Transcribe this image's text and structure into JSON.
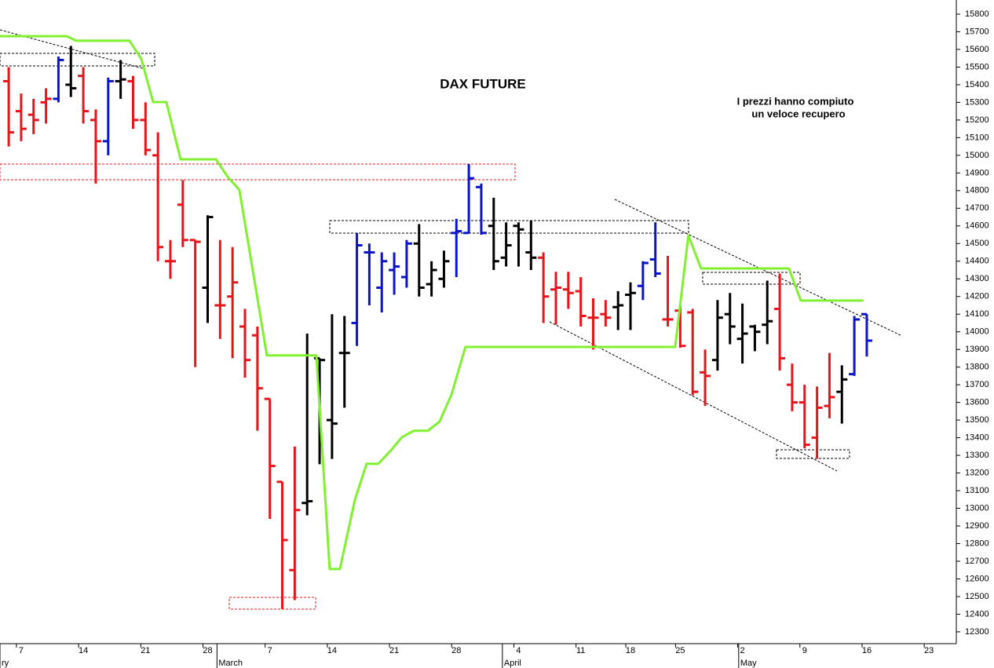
{
  "chart_data": {
    "type": "ohlc",
    "title": "DAX FUTURE",
    "annotations": [
      "I prezzi hanno compiuto",
      "un veloce recupero"
    ],
    "xlim": [
      -1.7,
      75.2
    ],
    "ylim": [
      12233,
      15880
    ],
    "yticks": [
      12300,
      12400,
      12500,
      12600,
      12700,
      12800,
      12900,
      13000,
      13100,
      13200,
      13300,
      13400,
      13500,
      13600,
      13700,
      13800,
      13900,
      14000,
      14100,
      14200,
      14300,
      14400,
      14500,
      14600,
      14700,
      14800,
      14900,
      15000,
      15100,
      15200,
      15300,
      15400,
      15500,
      15600,
      15700,
      15800
    ],
    "xticks": [
      {
        "value": 0,
        "label": "7"
      },
      {
        "value": 5,
        "label": "14"
      },
      {
        "value": 10,
        "label": "21"
      },
      {
        "value": 15,
        "label": "28"
      },
      {
        "value": 20,
        "label": "7"
      },
      {
        "value": 25,
        "label": "14"
      },
      {
        "value": 30,
        "label": "21"
      },
      {
        "value": 35,
        "label": "28"
      },
      {
        "value": 40,
        "label": "4"
      },
      {
        "value": 45,
        "label": "11"
      },
      {
        "value": 49,
        "label": "18"
      },
      {
        "value": 53,
        "label": "25"
      },
      {
        "value": 58,
        "label": "2"
      },
      {
        "value": 63,
        "label": "9"
      },
      {
        "value": 68,
        "label": "16"
      },
      {
        "value": 73,
        "label": "23"
      }
    ],
    "month_ticks": [
      {
        "value": -1.7,
        "label": "ry"
      },
      {
        "value": 15.75,
        "label": "March"
      },
      {
        "value": 38.7,
        "label": "April"
      },
      {
        "value": 57.7,
        "label": "May"
      }
    ],
    "palette": {
      "R": "#e8141b",
      "B": "#0a14c8",
      "K": "#000000"
    },
    "x": [
      -1,
      0,
      1,
      2,
      3,
      4,
      5,
      6,
      7,
      8,
      9,
      10,
      11,
      12,
      13,
      14,
      15,
      16,
      17,
      18,
      19,
      20,
      21,
      22,
      23,
      24,
      25,
      26,
      27,
      28,
      29,
      30,
      31,
      32,
      33,
      34,
      35,
      36,
      37,
      38,
      39,
      40,
      41,
      42,
      43,
      44,
      45,
      46,
      47,
      48,
      49,
      50,
      51,
      52,
      53,
      54,
      55,
      56,
      57,
      58,
      59,
      60,
      61,
      62,
      63,
      64,
      65,
      66,
      67,
      68
    ],
    "open": [
      15420,
      15250,
      15230,
      15300,
      15320,
      15400,
      15450,
      15200,
      15080,
      15420,
      15420,
      15200,
      15000,
      14400,
      14720,
      14520,
      14250,
      14150,
      14200,
      14030,
      13980,
      13620,
      13150,
      12650,
      13030,
      13850,
      13500,
      13880,
      14050,
      14450,
      14250,
      14350,
      14310,
      14500,
      14270,
      14300,
      14560,
      14560,
      14820,
      14600,
      14420,
      14600,
      14450,
      14420,
      14240,
      14240,
      14230,
      14080,
      14100,
      14140,
      14210,
      14260,
      14410,
      14070,
      14120,
      14110,
      13770,
      13840,
      14100,
      13960,
      14030,
      14040,
      14130,
      13700,
      13600,
      13400,
      13580,
      13660,
      13760,
      14100
    ],
    "high": [
      15500,
      15350,
      15320,
      15380,
      15560,
      15620,
      15500,
      15260,
      15440,
      15540,
      15450,
      15300,
      15130,
      14520,
      14860,
      14520,
      14660,
      14520,
      14480,
      14130,
      14030,
      13620,
      13150,
      13350,
      13990,
      13850,
      14100,
      14090,
      14560,
      14500,
      14450,
      14450,
      14520,
      14610,
      14400,
      14460,
      14640,
      14950,
      14840,
      14760,
      14620,
      14620,
      14630,
      14450,
      14340,
      14340,
      14310,
      14190,
      14180,
      14230,
      14280,
      14400,
      14620,
      14430,
      14150,
      14130,
      13900,
      14180,
      14220,
      14160,
      14040,
      14290,
      14330,
      13820,
      13700,
      13690,
      13880,
      13810,
      14090,
      14100
    ],
    "low": [
      15050,
      15080,
      15120,
      15180,
      15300,
      15330,
      15180,
      14840,
      15000,
      15320,
      15150,
      15000,
      14400,
      14300,
      14480,
      13800,
      14050,
      13960,
      13850,
      13740,
      13440,
      12940,
      12430,
      12480,
      12960,
      13250,
      13280,
      13570,
      13920,
      14150,
      14110,
      14210,
      14250,
      14200,
      14200,
      14250,
      14310,
      14560,
      14550,
      14350,
      14370,
      14370,
      14350,
      14050,
      14040,
      14130,
      14030,
      13900,
      14030,
      14010,
      14010,
      14180,
      14310,
      14030,
      13910,
      13640,
      13580,
      13780,
      13930,
      13820,
      13890,
      13930,
      13780,
      13550,
      13340,
      13280,
      13510,
      13480,
      13750,
      13860
    ],
    "close": [
      15130,
      15150,
      15200,
      15320,
      15540,
      15380,
      15250,
      15080,
      15420,
      15430,
      15200,
      15030,
      14480,
      14400,
      14520,
      14510,
      14650,
      14150,
      14280,
      13840,
      13680,
      13240,
      12820,
      12990,
      13040,
      13840,
      13480,
      13880,
      14490,
      14450,
      14400,
      14370,
      14500,
      14250,
      14350,
      14400,
      14570,
      14870,
      14560,
      14400,
      14490,
      14580,
      14420,
      14200,
      14250,
      14220,
      14090,
      14080,
      14080,
      14150,
      14220,
      14390,
      14330,
      14070,
      13920,
      13660,
      13750,
      14080,
      14030,
      13990,
      14000,
      14060,
      13850,
      13600,
      13360,
      13570,
      13630,
      13730,
      14070,
      13950
    ],
    "colors": [
      "R",
      "R",
      "R",
      "R",
      "B",
      "K",
      "R",
      "R",
      "B",
      "K",
      "R",
      "R",
      "R",
      "R",
      "R",
      "R",
      "K",
      "R",
      "R",
      "R",
      "R",
      "R",
      "R",
      "R",
      "K",
      "K",
      "K",
      "K",
      "B",
      "B",
      "B",
      "B",
      "B",
      "K",
      "K",
      "K",
      "B",
      "B",
      "B",
      "K",
      "K",
      "K",
      "K",
      "R",
      "R",
      "R",
      "R",
      "R",
      "R",
      "K",
      "K",
      "B",
      "B",
      "R",
      "R",
      "R",
      "R",
      "K",
      "K",
      "K",
      "K",
      "K",
      "R",
      "R",
      "R",
      "R",
      "R",
      "K",
      "B",
      "B"
    ],
    "overlay": {
      "color": "#80f030",
      "x": [
        -1.7,
        3.66,
        4.42,
        8.71,
        9.66,
        10.61,
        11.68,
        12.82,
        15.66,
        16.6,
        17.55,
        19.76,
        23.74,
        24.81,
        25.63,
        26.83,
        27.78,
        28.72,
        29.67,
        30.62,
        31.57,
        32.7,
        33.65,
        34.6,
        35.73,
        52.59,
        53.66,
        54.67,
        61.74,
        62.69,
        67.74
      ],
      "values": [
        15675,
        15675,
        15649,
        15649,
        15547,
        15302,
        15302,
        14977,
        14977,
        14879,
        14804,
        13866,
        13866,
        12656,
        12656,
        13047,
        13252,
        13252,
        13323,
        13403,
        13439,
        13439,
        13492,
        13643,
        13914,
        13914,
        14546,
        14359,
        14359,
        14177,
        14177
      ]
    }
  }
}
